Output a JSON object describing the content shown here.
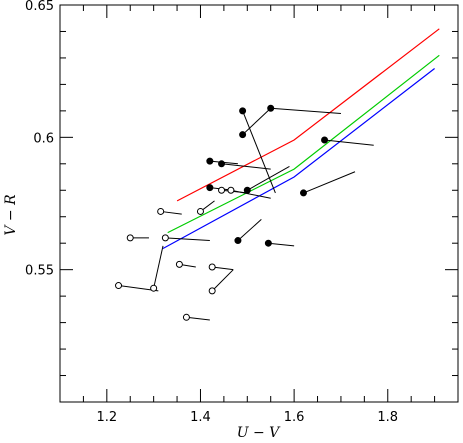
{
  "chart_data": {
    "type": "scatter",
    "title": "",
    "xlabel": "U − V",
    "ylabel": "V − R",
    "xlim": [
      1.1,
      1.95
    ],
    "ylim": [
      0.5,
      0.65
    ],
    "xticks": [
      1.2,
      1.4,
      1.6,
      1.8
    ],
    "xtick_labels": [
      "1.2",
      "1.4",
      "1.6",
      "1.8"
    ],
    "yticks": [
      0.55,
      0.6,
      0.65
    ],
    "ytick_labels": [
      "0.55",
      "0.6",
      "0.65"
    ],
    "grid": false,
    "legend": "none",
    "curves": [
      {
        "color": "#ff0000",
        "points": [
          [
            1.35,
            0.576
          ],
          [
            1.6,
            0.599
          ],
          [
            1.91,
            0.641
          ]
        ]
      },
      {
        "color": "#00cc00",
        "points": [
          [
            1.33,
            0.564
          ],
          [
            1.6,
            0.588
          ],
          [
            1.91,
            0.631
          ]
        ]
      },
      {
        "color": "#0000ff",
        "points": [
          [
            1.32,
            0.558
          ],
          [
            1.6,
            0.585
          ],
          [
            1.9,
            0.626
          ]
        ]
      }
    ],
    "filled_points": [
      {
        "x": 1.49,
        "y": 0.61,
        "to": [
          1.56,
          0.579
        ]
      },
      {
        "x": 1.55,
        "y": 0.611,
        "to": [
          1.7,
          0.609
        ]
      },
      {
        "x": 1.49,
        "y": 0.601,
        "to": [
          1.55,
          0.611
        ]
      },
      {
        "x": 1.665,
        "y": 0.599,
        "to": [
          1.77,
          0.597
        ]
      },
      {
        "x": 1.42,
        "y": 0.591,
        "to": [
          1.48,
          0.59
        ]
      },
      {
        "x": 1.445,
        "y": 0.59,
        "to": [
          1.55,
          0.588
        ]
      },
      {
        "x": 1.42,
        "y": 0.581,
        "to": [
          1.47,
          0.58
        ]
      },
      {
        "x": 1.5,
        "y": 0.58,
        "to": [
          1.59,
          0.589
        ]
      },
      {
        "x": 1.62,
        "y": 0.579,
        "to": [
          1.73,
          0.587
        ]
      },
      {
        "x": 1.48,
        "y": 0.561,
        "to": [
          1.53,
          0.569
        ]
      },
      {
        "x": 1.545,
        "y": 0.56,
        "to": [
          1.6,
          0.559
        ]
      }
    ],
    "open_points": [
      {
        "x": 1.445,
        "y": 0.58,
        "to": [
          1.5,
          0.579
        ]
      },
      {
        "x": 1.465,
        "y": 0.58,
        "to": [
          1.55,
          0.577
        ]
      },
      {
        "x": 1.315,
        "y": 0.572,
        "to": [
          1.36,
          0.571
        ]
      },
      {
        "x": 1.4,
        "y": 0.572,
        "to": [
          1.43,
          0.576
        ]
      },
      {
        "x": 1.25,
        "y": 0.562,
        "to": [
          1.29,
          0.562
        ]
      },
      {
        "x": 1.325,
        "y": 0.562,
        "to": [
          1.42,
          0.561
        ]
      },
      {
        "x": 1.355,
        "y": 0.552,
        "to": [
          1.39,
          0.551
        ]
      },
      {
        "x": 1.425,
        "y": 0.551,
        "to": [
          1.47,
          0.55
        ]
      },
      {
        "x": 1.225,
        "y": 0.544,
        "to": [
          1.31,
          0.542
        ]
      },
      {
        "x": 1.3,
        "y": 0.543,
        "to": [
          1.32,
          0.559
        ]
      },
      {
        "x": 1.425,
        "y": 0.542,
        "to": [
          1.47,
          0.55
        ]
      },
      {
        "x": 1.37,
        "y": 0.532,
        "to": [
          1.42,
          0.531
        ]
      }
    ]
  }
}
